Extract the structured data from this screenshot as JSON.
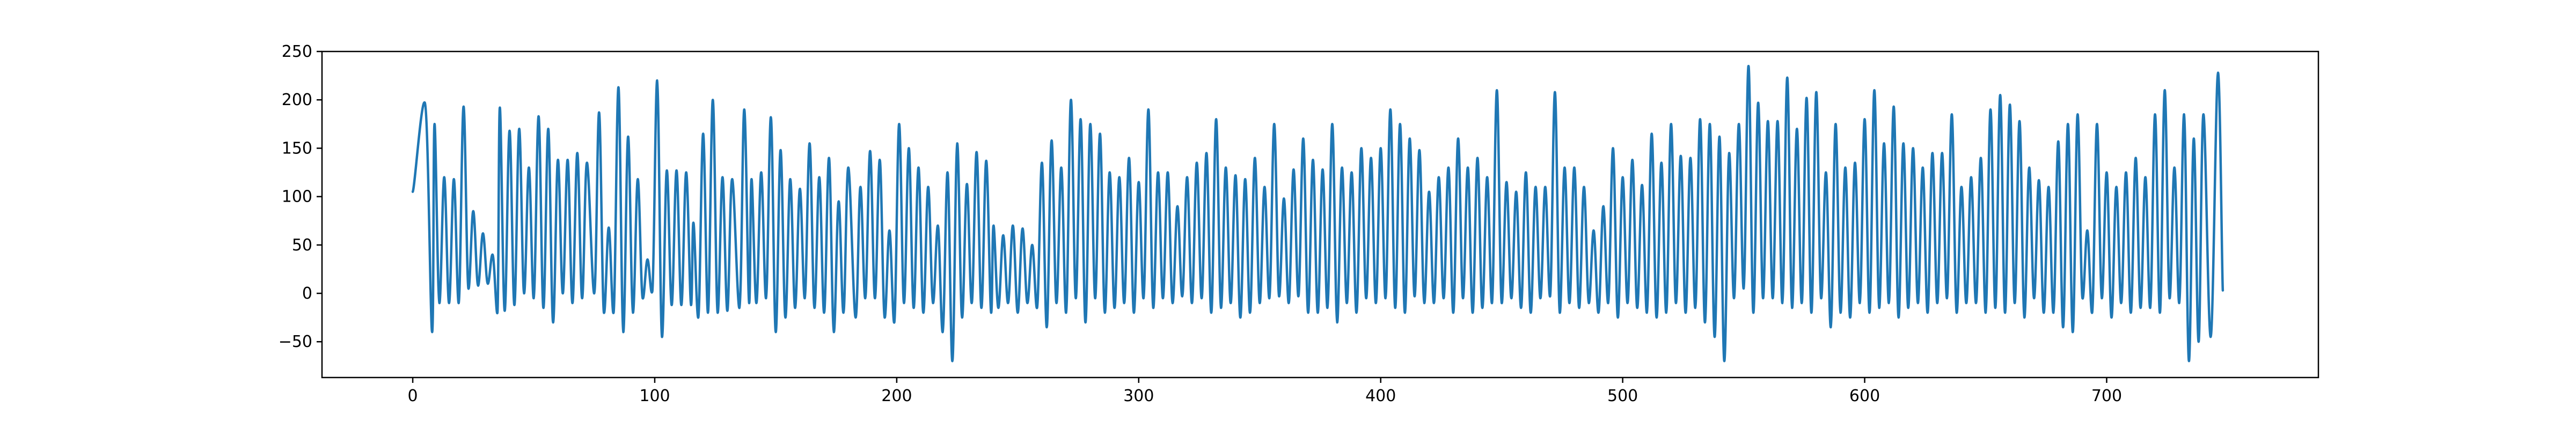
{
  "chart_data": {
    "type": "line",
    "title": "",
    "xlabel": "",
    "ylabel": "",
    "xlim": [
      -37.5,
      787.5
    ],
    "ylim": [
      -87,
      250
    ],
    "x_ticks": [
      0,
      100,
      200,
      300,
      400,
      500,
      600,
      700
    ],
    "y_ticks": [
      -50,
      0,
      50,
      100,
      150,
      200,
      250
    ],
    "grid": false,
    "legend": "none",
    "series": [
      {
        "color": "#1f77b4",
        "x_start": 0,
        "x_step": 1,
        "peak_x": [
          5,
          9,
          13,
          17,
          21,
          25,
          29,
          33,
          36,
          40,
          44,
          48,
          52,
          56,
          60,
          64,
          68,
          72,
          77,
          81,
          85,
          89,
          93,
          97,
          101,
          105,
          109,
          113,
          116,
          120,
          124,
          128,
          132,
          137,
          140,
          144,
          148,
          152,
          156,
          160,
          164,
          168,
          172,
          176,
          180,
          185,
          189,
          193,
          197,
          201,
          205,
          209,
          213,
          217,
          221,
          225,
          229,
          233,
          237,
          240,
          244,
          248,
          252,
          256,
          260,
          264,
          268,
          272,
          276,
          280,
          284,
          288,
          292,
          296,
          300,
          304,
          308,
          312,
          316,
          320,
          324,
          328,
          332,
          336,
          340,
          344,
          348,
          352,
          356,
          360,
          364,
          368,
          372,
          376,
          380,
          384,
          388,
          392,
          396,
          400,
          404,
          408,
          412,
          416,
          420,
          424,
          428,
          432,
          436,
          440,
          444,
          448,
          452,
          456,
          460,
          464,
          468,
          472,
          476,
          480,
          484,
          488,
          492,
          496,
          500,
          504,
          508,
          512,
          516,
          520,
          524,
          528,
          532,
          536,
          540,
          544,
          548,
          552,
          556,
          560,
          564,
          568,
          572,
          576,
          580,
          584,
          588,
          592,
          596,
          600,
          604,
          608,
          612,
          616,
          620,
          624,
          628,
          632,
          636,
          640,
          644,
          648,
          652,
          656,
          660,
          664,
          668,
          672,
          676,
          680,
          684,
          688,
          692,
          696,
          700,
          704,
          708,
          712,
          716,
          720,
          724,
          728,
          732,
          736,
          740,
          746
        ],
        "peak_y": [
          197,
          175,
          120,
          118,
          193,
          85,
          62,
          40,
          192,
          168,
          170,
          130,
          183,
          170,
          138,
          138,
          145,
          135,
          187,
          68,
          213,
          162,
          118,
          35,
          220,
          127,
          127,
          125,
          73,
          165,
          200,
          120,
          118,
          190,
          118,
          125,
          182,
          148,
          118,
          108,
          155,
          120,
          140,
          95,
          130,
          110,
          147,
          138,
          65,
          175,
          150,
          130,
          110,
          70,
          125,
          155,
          113,
          146,
          137,
          70,
          60,
          70,
          67,
          50,
          135,
          158,
          130,
          200,
          180,
          175,
          165,
          125,
          120,
          140,
          115,
          190,
          125,
          125,
          90,
          120,
          135,
          145,
          180,
          130,
          122,
          118,
          140,
          110,
          175,
          98,
          128,
          160,
          138,
          128,
          175,
          130,
          125,
          150,
          140,
          150,
          190,
          175,
          160,
          148,
          105,
          120,
          130,
          160,
          130,
          140,
          120,
          210,
          115,
          105,
          125,
          110,
          110,
          208,
          130,
          130,
          110,
          65,
          90,
          150,
          120,
          138,
          112,
          165,
          135,
          175,
          142,
          140,
          180,
          175,
          162,
          145,
          175,
          235,
          197,
          178,
          178,
          223,
          170,
          202,
          208,
          125,
          175,
          130,
          135,
          180,
          210,
          155,
          193,
          155,
          150,
          130,
          145,
          145,
          185,
          110,
          120,
          140,
          190,
          205,
          195,
          178,
          130,
          117,
          110,
          157,
          175,
          185,
          65,
          175,
          125,
          110,
          125,
          140,
          120,
          185,
          210,
          130,
          185,
          160,
          185,
          228
        ],
        "trough_x": [
          8,
          11,
          15,
          19,
          23,
          27,
          31,
          35,
          38,
          42,
          46,
          50,
          54,
          58,
          62,
          66,
          70,
          75,
          79,
          83,
          87,
          91,
          95,
          99,
          103,
          107,
          111,
          115,
          118,
          122,
          126,
          130,
          135,
          139,
          142,
          146,
          150,
          154,
          158,
          162,
          166,
          170,
          174,
          178,
          183,
          187,
          191,
          195,
          199,
          203,
          207,
          211,
          215,
          219,
          223,
          227,
          231,
          235,
          239,
          242,
          246,
          250,
          254,
          258,
          262,
          266,
          270,
          274,
          278,
          282,
          286,
          290,
          294,
          298,
          302,
          306,
          310,
          314,
          318,
          322,
          326,
          330,
          334,
          338,
          342,
          346,
          350,
          354,
          358,
          362,
          366,
          370,
          374,
          378,
          382,
          386,
          390,
          394,
          398,
          402,
          406,
          410,
          414,
          418,
          422,
          426,
          430,
          434,
          438,
          442,
          446,
          450,
          454,
          458,
          462,
          466,
          470,
          474,
          478,
          482,
          486,
          490,
          494,
          498,
          502,
          506,
          510,
          514,
          518,
          522,
          526,
          530,
          534,
          538,
          542,
          546,
          550,
          554,
          558,
          562,
          566,
          570,
          574,
          578,
          582,
          586,
          590,
          594,
          598,
          602,
          606,
          610,
          614,
          618,
          622,
          626,
          630,
          634,
          638,
          642,
          646,
          650,
          654,
          658,
          662,
          666,
          670,
          674,
          678,
          682,
          686,
          690,
          694,
          698,
          702,
          706,
          710,
          714,
          718,
          722,
          726,
          730,
          734,
          738,
          743,
          748
        ],
        "trough_y": [
          -40,
          -10,
          -10,
          -10,
          5,
          8,
          10,
          -20,
          -18,
          -12,
          0,
          -5,
          -15,
          -30,
          0,
          -10,
          -5,
          0,
          -20,
          -20,
          -40,
          -20,
          -5,
          2,
          -45,
          -12,
          -12,
          -12,
          -25,
          -20,
          -20,
          -18,
          -15,
          -10,
          -10,
          -5,
          -40,
          -25,
          -15,
          -5,
          -15,
          -20,
          -40,
          -20,
          -25,
          -5,
          -5,
          -25,
          -30,
          -10,
          -15,
          -20,
          -10,
          -40,
          -70,
          -25,
          -10,
          -15,
          -20,
          -15,
          -10,
          -20,
          -10,
          -15,
          -35,
          -10,
          -20,
          -5,
          -30,
          -5,
          -20,
          -15,
          -10,
          -20,
          -5,
          -15,
          -5,
          -10,
          -3,
          -10,
          -5,
          -20,
          -15,
          -10,
          -25,
          -20,
          -10,
          -5,
          -3,
          -10,
          -3,
          -20,
          -20,
          -15,
          -30,
          -10,
          -20,
          -5,
          -10,
          -5,
          -15,
          -20,
          -3,
          -10,
          -10,
          -5,
          -20,
          -5,
          -20,
          -15,
          -10,
          -10,
          -5,
          -15,
          -20,
          -5,
          -3,
          -20,
          -10,
          -15,
          -10,
          -20,
          -10,
          -25,
          -10,
          -15,
          -20,
          -25,
          -20,
          -10,
          -20,
          -15,
          -30,
          -45,
          -70,
          -5,
          5,
          -20,
          -5,
          -5,
          -10,
          -15,
          -10,
          -20,
          -5,
          -35,
          -20,
          -25,
          -10,
          -20,
          -15,
          -10,
          -25,
          -15,
          -10,
          -20,
          -10,
          -5,
          -20,
          -10,
          -10,
          -20,
          -15,
          -20,
          -10,
          -25,
          -5,
          -20,
          -20,
          -35,
          -40,
          -5,
          -20,
          -5,
          -25,
          -10,
          -20,
          -15,
          -15,
          -20,
          -5,
          -10,
          -70,
          -50,
          -45,
          3
        ]
      }
    ]
  }
}
